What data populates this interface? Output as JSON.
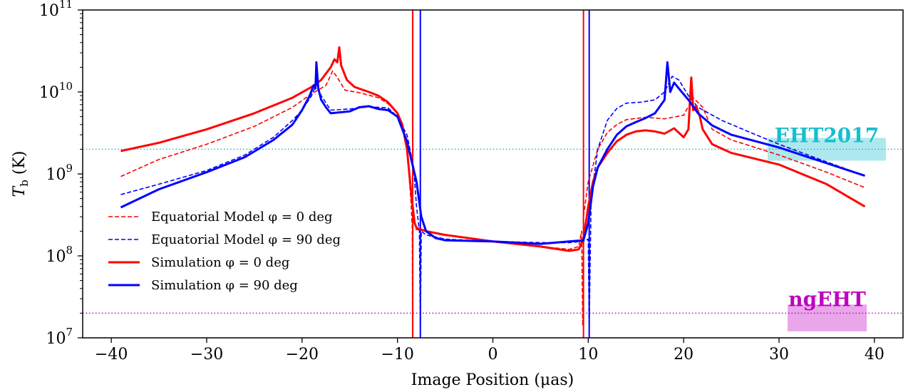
{
  "chart_data": {
    "type": "line",
    "xlabel": "Image Position (μas)",
    "ylabel_main": "T",
    "ylabel_sub": "b",
    "ylabel_unit": " (K)",
    "xlim": [
      -43,
      43
    ],
    "ylim": [
      10000000,
      100000000000
    ],
    "yscale": "log",
    "x_ticks": [
      -40,
      -30,
      -20,
      -10,
      0,
      10,
      20,
      30,
      40
    ],
    "x_tick_labels": [
      "−40",
      "−30",
      "−20",
      "−10",
      "0",
      "10",
      "20",
      "30",
      "40"
    ],
    "y_ticks": [
      {
        "base": "10",
        "exp": "7",
        "value": 10000000
      },
      {
        "base": "10",
        "exp": "8",
        "value": 100000000
      },
      {
        "base": "10",
        "exp": "9",
        "value": 1000000000
      },
      {
        "base": "10",
        "exp": "10",
        "value": 10000000000
      },
      {
        "base": "10",
        "exp": "11",
        "value": 100000000000
      }
    ],
    "legend": {
      "placement": "center-left"
    },
    "series": [
      {
        "name": "Equatorial Model φ = 0 deg",
        "color": "#ff0000",
        "style": "dashed",
        "points": [
          [
            -39,
            930000000.0
          ],
          [
            -35,
            1500000000.0
          ],
          [
            -30,
            2300000000.0
          ],
          [
            -25,
            3800000000.0
          ],
          [
            -21,
            6500000000.0
          ],
          [
            -19,
            9500000000.0
          ],
          [
            -17.5,
            12000000000.0
          ],
          [
            -16.8,
            18000000000.0
          ],
          [
            -16.3,
            15000000000.0
          ],
          [
            -15.5,
            10500000000.0
          ],
          [
            -14,
            9800000000.0
          ],
          [
            -12,
            8500000000.0
          ],
          [
            -11,
            7200000000.0
          ],
          [
            -10,
            5500000000.0
          ],
          [
            -9.5,
            4000000000.0
          ],
          [
            -9,
            2000000000.0
          ],
          [
            -8.6,
            500000000.0
          ],
          [
            -8.45,
            220000000.0
          ],
          [
            -8.42,
            14000000.0
          ],
          [
            -8.38,
            200000000.0
          ],
          [
            -8,
            210000000.0
          ],
          [
            -7,
            200000000.0
          ],
          [
            -5,
            180000000.0
          ],
          [
            0,
            150000000.0
          ],
          [
            5,
            130000000.0
          ],
          [
            8,
            120000000.0
          ],
          [
            9,
            130000000.0
          ],
          [
            9.3,
            200000000.0
          ],
          [
            9.42,
            14000000.0
          ],
          [
            9.5,
            300000000.0
          ],
          [
            10,
            800000000.0
          ],
          [
            11,
            2000000000.0
          ],
          [
            12,
            3200000000.0
          ],
          [
            13,
            4000000000.0
          ],
          [
            14,
            4600000000.0
          ],
          [
            16,
            4900000000.0
          ],
          [
            18,
            4700000000.0
          ],
          [
            20,
            5200000000.0
          ],
          [
            21,
            8500000000.0
          ],
          [
            22,
            6500000000.0
          ],
          [
            23,
            3500000000.0
          ],
          [
            25,
            2600000000.0
          ],
          [
            30,
            1700000000.0
          ],
          [
            35,
            1050000000.0
          ],
          [
            39,
            680000000.0
          ]
        ]
      },
      {
        "name": "Equatorial Model φ = 90 deg",
        "color": "#0000ff",
        "style": "dashed",
        "points": [
          [
            -39,
            560000000.0
          ],
          [
            -35,
            750000000.0
          ],
          [
            -30,
            1100000000.0
          ],
          [
            -26,
            1700000000.0
          ],
          [
            -23,
            2800000000.0
          ],
          [
            -21,
            4500000000.0
          ],
          [
            -20,
            6000000000.0
          ],
          [
            -19,
            9000000000.0
          ],
          [
            -18.5,
            12500000000.0
          ],
          [
            -18,
            9000000000.0
          ],
          [
            -17,
            6000000000.0
          ],
          [
            -15,
            6200000000.0
          ],
          [
            -13,
            6600000000.0
          ],
          [
            -11,
            6400000000.0
          ],
          [
            -10,
            5000000000.0
          ],
          [
            -9,
            3000000000.0
          ],
          [
            -8.3,
            1200000000.0
          ],
          [
            -8,
            400000000.0
          ],
          [
            -7.7,
            200000000.0
          ],
          [
            -7.6,
            14000000.0
          ],
          [
            -7.5,
            200000000.0
          ],
          [
            -7,
            180000000.0
          ],
          [
            -5,
            160000000.0
          ],
          [
            0,
            150000000.0
          ],
          [
            5,
            145000000.0
          ],
          [
            8,
            145000000.0
          ],
          [
            9.5,
            150000000.0
          ],
          [
            10,
            160000000.0
          ],
          [
            10.1,
            14000000.0
          ],
          [
            10.3,
            500000000.0
          ],
          [
            11,
            2000000000.0
          ],
          [
            12,
            4500000000.0
          ],
          [
            13,
            6300000000.0
          ],
          [
            14,
            7300000000.0
          ],
          [
            15.5,
            7500000000.0
          ],
          [
            17,
            8000000000.0
          ],
          [
            18,
            10000000000.0
          ],
          [
            18.8,
            15500000000.0
          ],
          [
            19.5,
            14000000000.0
          ],
          [
            20.5,
            9000000000.0
          ],
          [
            21.5,
            6500000000.0
          ],
          [
            24,
            4500000000.0
          ],
          [
            27,
            3200000000.0
          ],
          [
            30,
            2300000000.0
          ],
          [
            35,
            1400000000.0
          ],
          [
            39,
            950000000.0
          ]
        ]
      },
      {
        "name": "Simulation φ = 0 deg",
        "color": "#ff0000",
        "style": "solid",
        "points": [
          [
            -39,
            1900000000.0
          ],
          [
            -35,
            2400000000.0
          ],
          [
            -30,
            3500000000.0
          ],
          [
            -25,
            5500000000.0
          ],
          [
            -21,
            8500000000.0
          ],
          [
            -19,
            11500000000.0
          ],
          [
            -18,
            14000000000.0
          ],
          [
            -17,
            20000000000.0
          ],
          [
            -16.6,
            25000000000.0
          ],
          [
            -16.3,
            23000000000.0
          ],
          [
            -16.1,
            35000000000.0
          ],
          [
            -15.9,
            21000000000.0
          ],
          [
            -15.3,
            14000000000.0
          ],
          [
            -14.5,
            11500000000.0
          ],
          [
            -13,
            10000000000.0
          ],
          [
            -12,
            9000000000.0
          ],
          [
            -11,
            7500000000.0
          ],
          [
            -10,
            5500000000.0
          ],
          [
            -9.5,
            4000000000.0
          ],
          [
            -9,
            2000000000.0
          ],
          [
            -8.5,
            500000000.0
          ],
          [
            -8.2,
            250000000.0
          ],
          [
            -8,
            220000000.0
          ],
          [
            -7,
            200000000.0
          ],
          [
            -5,
            180000000.0
          ],
          [
            0,
            150000000.0
          ],
          [
            5,
            130000000.0
          ],
          [
            8,
            115000000.0
          ],
          [
            9,
            120000000.0
          ],
          [
            9.5,
            160000000.0
          ],
          [
            10,
            400000000.0
          ],
          [
            10.5,
            800000000.0
          ],
          [
            11,
            1200000000.0
          ],
          [
            12,
            1800000000.0
          ],
          [
            13,
            2500000000.0
          ],
          [
            14,
            3000000000.0
          ],
          [
            15,
            3300000000.0
          ],
          [
            16,
            3400000000.0
          ],
          [
            17,
            3300000000.0
          ],
          [
            18,
            3100000000.0
          ],
          [
            19,
            3600000000.0
          ],
          [
            20,
            2800000000.0
          ],
          [
            20.5,
            3500000000.0
          ],
          [
            20.8,
            15000000000.0
          ],
          [
            21,
            6000000000.0
          ],
          [
            21.3,
            6800000000.0
          ],
          [
            21.7,
            5000000000.0
          ],
          [
            22,
            3500000000.0
          ],
          [
            23,
            2300000000.0
          ],
          [
            25,
            1800000000.0
          ],
          [
            30,
            1300000000.0
          ],
          [
            35,
            750000000.0
          ],
          [
            39,
            400000000.0
          ]
        ]
      },
      {
        "name": "Simulation φ = 90 deg",
        "color": "#0000ff",
        "style": "solid",
        "points": [
          [
            -39,
            390000000.0
          ],
          [
            -35,
            650000000.0
          ],
          [
            -30,
            1050000000.0
          ],
          [
            -26,
            1600000000.0
          ],
          [
            -23,
            2600000000.0
          ],
          [
            -21,
            4000000000.0
          ],
          [
            -20,
            6000000000.0
          ],
          [
            -19.2,
            9000000000.0
          ],
          [
            -18.8,
            12000000000.0
          ],
          [
            -18.6,
            11000000000.0
          ],
          [
            -18.5,
            23000000000.0
          ],
          [
            -18.3,
            11000000000.0
          ],
          [
            -18,
            8000000000.0
          ],
          [
            -17.5,
            6500000000.0
          ],
          [
            -17,
            5500000000.0
          ],
          [
            -15,
            5800000000.0
          ],
          [
            -14,
            6500000000.0
          ],
          [
            -13,
            6700000000.0
          ],
          [
            -12,
            6200000000.0
          ],
          [
            -11,
            6000000000.0
          ],
          [
            -10,
            5000000000.0
          ],
          [
            -9,
            2500000000.0
          ],
          [
            -8,
            800000000.0
          ],
          [
            -7.5,
            300000000.0
          ],
          [
            -7,
            200000000.0
          ],
          [
            -6,
            165000000.0
          ],
          [
            -5,
            155000000.0
          ],
          [
            0,
            150000000.0
          ],
          [
            5,
            140000000.0
          ],
          [
            8,
            150000000.0
          ],
          [
            9.5,
            155000000.0
          ],
          [
            10,
            250000000.0
          ],
          [
            10.5,
            700000000.0
          ],
          [
            11,
            1200000000.0
          ],
          [
            12,
            2000000000.0
          ],
          [
            13,
            3000000000.0
          ],
          [
            14,
            3800000000.0
          ],
          [
            15,
            4300000000.0
          ],
          [
            16,
            4800000000.0
          ],
          [
            17,
            5500000000.0
          ],
          [
            18,
            8000000000.0
          ],
          [
            18.3,
            23000000000.0
          ],
          [
            18.6,
            10000000000.0
          ],
          [
            19,
            13000000000.0
          ],
          [
            19.5,
            11000000000.0
          ],
          [
            20.5,
            8000000000.0
          ],
          [
            21.5,
            5500000000.0
          ],
          [
            23,
            3900000000.0
          ],
          [
            25,
            3000000000.0
          ],
          [
            30,
            2100000000.0
          ],
          [
            35,
            1350000000.0
          ],
          [
            39,
            950000000.0
          ]
        ]
      }
    ],
    "vertical_lines": [
      {
        "x": -8.4,
        "color": "#ff0000"
      },
      {
        "x": -7.6,
        "color": "#0000ff"
      },
      {
        "x": 9.5,
        "color": "#ff0000"
      },
      {
        "x": 10.1,
        "color": "#0000ff"
      }
    ],
    "thresholds": [
      {
        "label": "EHT2017",
        "y": 2000000000,
        "color": "#17becf",
        "band_x": [
          28.8,
          41.2
        ],
        "band_y": [
          1450000000.0,
          2750000000.0
        ]
      },
      {
        "label": "ngEHT",
        "y": 20000000,
        "color": "#bf00bf",
        "band_x": [
          30.9,
          39.2
        ],
        "band_y": [
          12000000.0,
          25500000.0
        ]
      }
    ]
  }
}
